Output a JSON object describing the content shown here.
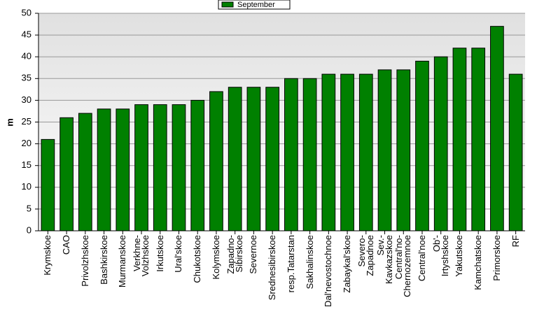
{
  "chart_data": {
    "type": "bar",
    "y_label": "m",
    "categories": [
      "Krymskoe",
      "CAO",
      "Privolzhskoe",
      "Bashkirskoe",
      "Murmanskoe",
      "Verkhne-\nVolzhskoe",
      "Irkutskoe",
      "Ural'skoe",
      "Chukotskoe",
      "Kolymskoe",
      "Zapadno-\nSibirskoe",
      "Severnoe",
      "Srednesibirskoe",
      "resp.Tatarstan",
      "Sakhalinskoe",
      "Dal'nevostochnoe",
      "Zabaykal'skoe",
      "Severo-\nZapadnoe",
      "Sev.-\nKavkazskoe",
      "Central'no-\nChernozemnoe",
      "Central'noe",
      "Ob'-\nIrtyshskoe",
      "Yakutskoe",
      "Kamchatskoe",
      "Primorskoe",
      "RF"
    ],
    "series": [
      {
        "name": "September",
        "color": "#008000",
        "values": [
          21,
          26,
          27,
          28,
          28,
          29,
          29,
          29,
          30,
          32,
          33,
          33,
          33,
          35,
          35,
          36,
          36,
          36,
          37,
          37,
          39,
          40,
          42,
          42,
          47,
          36
        ]
      }
    ],
    "ylim": [
      0,
      50
    ],
    "yticks": [
      0,
      5,
      10,
      15,
      20,
      25,
      30,
      35,
      40,
      45,
      50
    ],
    "grid": true
  }
}
